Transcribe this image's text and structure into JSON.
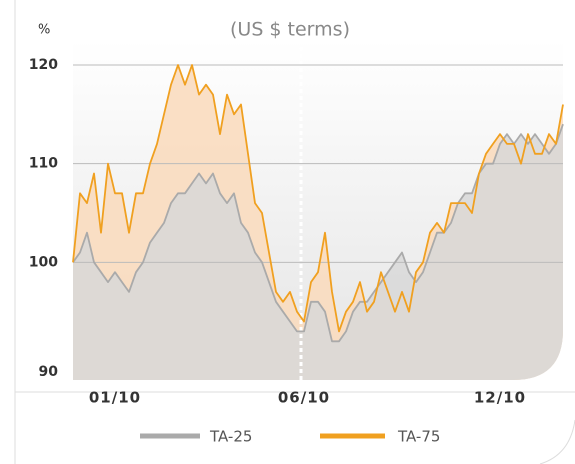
{
  "chart_data": {
    "type": "line",
    "title": "(US $ terms)",
    "y_label": "%",
    "categories": [
      null,
      null,
      null,
      null,
      null,
      null,
      "01/10",
      null,
      null,
      null,
      null,
      null,
      null,
      null,
      null,
      null,
      null,
      null,
      null,
      null,
      null,
      null,
      null,
      null,
      null,
      null,
      null,
      null,
      null,
      null,
      null,
      null,
      null,
      "06/10",
      null,
      null,
      null,
      null,
      null,
      null,
      null,
      null,
      null,
      null,
      null,
      null,
      null,
      null,
      null,
      null,
      null,
      null,
      null,
      null,
      null,
      null,
      null,
      null,
      null,
      null,
      null,
      "12/10",
      null,
      null,
      null,
      null,
      null,
      null,
      null,
      null,
      null
    ],
    "series": [
      {
        "name": "TA-25",
        "color": "#aaaaaa",
        "values": [
          100,
          101,
          103,
          100,
          99,
          98,
          99,
          98,
          97,
          99,
          100,
          102,
          103,
          104,
          106,
          107,
          107,
          108,
          109,
          108,
          109,
          107,
          106,
          107,
          104,
          103,
          101,
          100,
          98,
          96,
          95,
          94,
          93,
          93,
          96,
          96,
          95,
          92,
          92,
          93,
          95,
          96,
          96,
          97,
          98,
          99,
          100,
          101,
          99,
          98,
          99,
          101,
          103,
          103,
          104,
          106,
          107,
          107,
          109,
          110,
          110,
          112,
          113,
          112,
          113,
          112,
          113,
          112,
          111,
          112,
          114
        ]
      },
      {
        "name": "TA-75",
        "color": "#f0a020",
        "values": [
          100,
          107,
          106,
          109,
          103,
          110,
          107,
          107,
          103,
          107,
          107,
          110,
          112,
          115,
          118,
          120,
          118,
          120,
          117,
          118,
          117,
          113,
          117,
          115,
          116,
          111,
          106,
          105,
          101,
          97,
          96,
          97,
          95,
          94,
          98,
          99,
          103,
          97,
          93,
          95,
          96,
          98,
          95,
          96,
          99,
          97,
          95,
          97,
          95,
          99,
          100,
          103,
          104,
          103,
          106,
          106,
          106,
          105,
          109,
          111,
          112,
          113,
          112,
          112,
          110,
          113,
          111,
          111,
          113,
          112,
          116
        ]
      }
    ],
    "ylim": [
      90,
      120
    ],
    "yticks": [
      90,
      100,
      110,
      120
    ],
    "grid": true
  }
}
